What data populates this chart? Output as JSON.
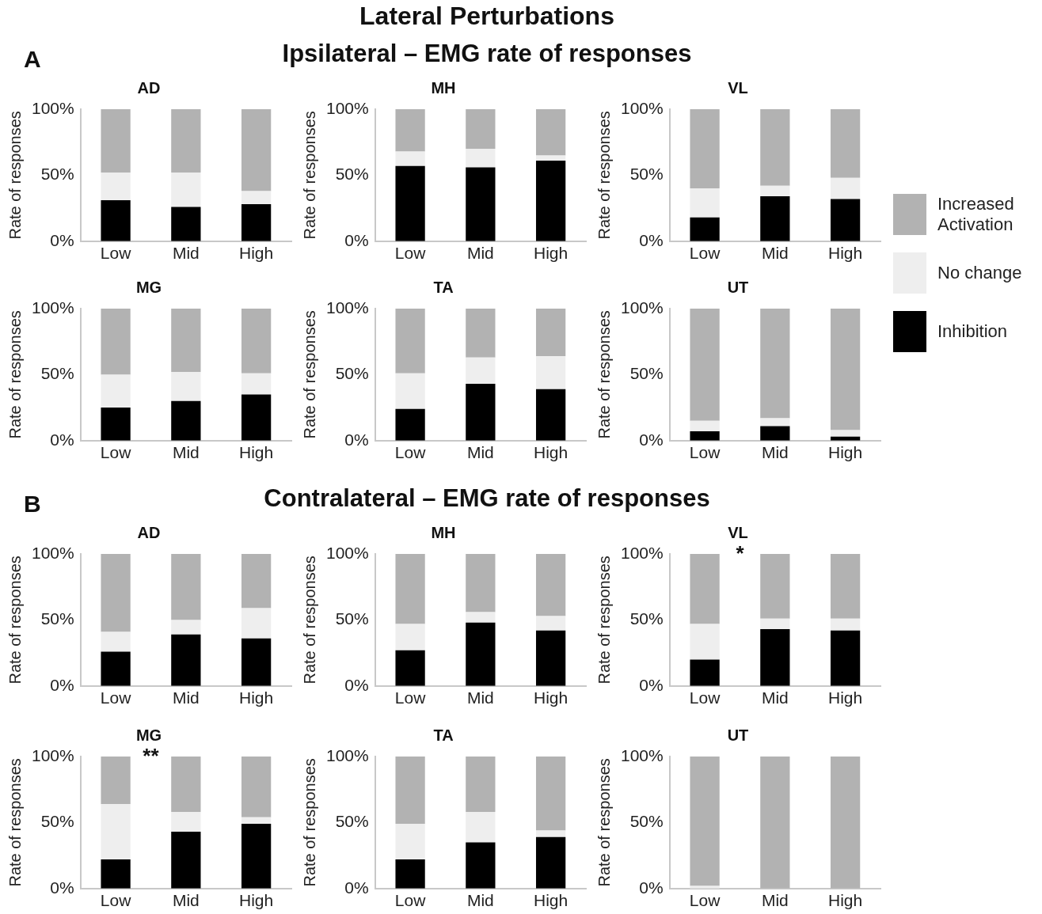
{
  "chart_data": [
    {
      "type": "bar",
      "stacked": true,
      "title": "AD",
      "ylabel": "Rate of responses",
      "categories": [
        "Low",
        "Mid",
        "High"
      ],
      "ylim": [
        0,
        100
      ],
      "yticks": [
        {
          "value": 0,
          "label": "0%"
        },
        {
          "value": 50,
          "label": "50%"
        },
        {
          "value": 100,
          "label": "100%"
        }
      ],
      "legend": "right",
      "annotations": [
        "Lateral Perturbations",
        "A",
        "Ipsilateral – EMG rate of responses"
      ],
      "series": [
        {
          "name": "Inhibition",
          "color": "#000000",
          "values": [
            31,
            26,
            28
          ]
        },
        {
          "name": "No change",
          "color": "#eeeeee",
          "values": [
            21,
            26,
            10
          ]
        },
        {
          "name": "Increased Activation",
          "color": "#b2b2b2",
          "values": [
            48,
            48,
            62
          ]
        }
      ]
    },
    {
      "type": "bar",
      "stacked": true,
      "title": "MH",
      "ylabel": "Rate of responses",
      "categories": [
        "Low",
        "Mid",
        "High"
      ],
      "ylim": [
        0,
        100
      ],
      "yticks": [
        {
          "value": 0,
          "label": "0%"
        },
        {
          "value": 50,
          "label": "50%"
        },
        {
          "value": 100,
          "label": "100%"
        }
      ],
      "series": [
        {
          "color": "#000000",
          "values": [
            57,
            56,
            61
          ]
        },
        {
          "color": "#eeeeee",
          "values": [
            11,
            14,
            4
          ]
        },
        {
          "color": "#b2b2b2",
          "values": [
            32,
            30,
            35
          ]
        }
      ]
    },
    {
      "type": "bar",
      "stacked": true,
      "title": "VL",
      "ylabel": "Rate of responses",
      "categories": [
        "Low",
        "Mid",
        "High"
      ],
      "ylim": [
        0,
        100
      ],
      "yticks": [
        {
          "value": 0,
          "label": "0%"
        },
        {
          "value": 50,
          "label": "50%"
        },
        {
          "value": 100,
          "label": "100%"
        }
      ],
      "series": [
        {
          "color": "#000000",
          "values": [
            18,
            34,
            32
          ]
        },
        {
          "color": "#eeeeee",
          "values": [
            22,
            8,
            16
          ]
        },
        {
          "color": "#b2b2b2",
          "values": [
            60,
            58,
            52
          ]
        }
      ]
    },
    {
      "type": "bar",
      "stacked": true,
      "title": "MG",
      "ylabel": "Rate of responses",
      "categories": [
        "Low",
        "Mid",
        "High"
      ],
      "ylim": [
        0,
        100
      ],
      "yticks": [
        {
          "value": 0,
          "label": "0%"
        },
        {
          "value": 50,
          "label": "50%"
        },
        {
          "value": 100,
          "label": "100%"
        }
      ],
      "series": [
        {
          "color": "#000000",
          "values": [
            25,
            30,
            35
          ]
        },
        {
          "color": "#eeeeee",
          "values": [
            25,
            22,
            16
          ]
        },
        {
          "color": "#b2b2b2",
          "values": [
            50,
            48,
            49
          ]
        }
      ]
    },
    {
      "type": "bar",
      "stacked": true,
      "title": "TA",
      "ylabel": "Rate of responses",
      "categories": [
        "Low",
        "Mid",
        "High"
      ],
      "ylim": [
        0,
        100
      ],
      "yticks": [
        {
          "value": 0,
          "label": "0%"
        },
        {
          "value": 50,
          "label": "50%"
        },
        {
          "value": 100,
          "label": "100%"
        }
      ],
      "series": [
        {
          "color": "#000000",
          "values": [
            24,
            43,
            39
          ]
        },
        {
          "color": "#eeeeee",
          "values": [
            27,
            20,
            25
          ]
        },
        {
          "color": "#b2b2b2",
          "values": [
            49,
            37,
            36
          ]
        }
      ]
    },
    {
      "type": "bar",
      "stacked": true,
      "title": "UT",
      "ylabel": "Rate of responses",
      "categories": [
        "Low",
        "Mid",
        "High"
      ],
      "ylim": [
        0,
        100
      ],
      "yticks": [
        {
          "value": 0,
          "label": "0%"
        },
        {
          "value": 50,
          "label": "50%"
        },
        {
          "value": 100,
          "label": "100%"
        }
      ],
      "series": [
        {
          "color": "#000000",
          "values": [
            7,
            11,
            3
          ]
        },
        {
          "color": "#eeeeee",
          "values": [
            8,
            6,
            5
          ]
        },
        {
          "color": "#b2b2b2",
          "values": [
            85,
            83,
            92
          ]
        }
      ]
    },
    {
      "type": "bar",
      "stacked": true,
      "title": "AD",
      "ylabel": "Rate of responses",
      "categories": [
        "Low",
        "Mid",
        "High"
      ],
      "ylim": [
        0,
        100
      ],
      "yticks": [
        {
          "value": 0,
          "label": "0%"
        },
        {
          "value": 50,
          "label": "50%"
        },
        {
          "value": 100,
          "label": "100%"
        }
      ],
      "annotations": [
        "B",
        "Contralateral – EMG rate of responses"
      ],
      "series": [
        {
          "color": "#000000",
          "values": [
            26,
            39,
            36
          ]
        },
        {
          "color": "#eeeeee",
          "values": [
            15,
            11,
            23
          ]
        },
        {
          "color": "#b2b2b2",
          "values": [
            59,
            50,
            41
          ]
        }
      ]
    },
    {
      "type": "bar",
      "stacked": true,
      "title": "MH",
      "ylabel": "Rate of responses",
      "categories": [
        "Low",
        "Mid",
        "High"
      ],
      "ylim": [
        0,
        100
      ],
      "yticks": [
        {
          "value": 0,
          "label": "0%"
        },
        {
          "value": 50,
          "label": "50%"
        },
        {
          "value": 100,
          "label": "100%"
        }
      ],
      "series": [
        {
          "color": "#000000",
          "values": [
            27,
            48,
            42
          ]
        },
        {
          "color": "#eeeeee",
          "values": [
            20,
            8,
            11
          ]
        },
        {
          "color": "#b2b2b2",
          "values": [
            53,
            44,
            47
          ]
        }
      ]
    },
    {
      "type": "bar",
      "stacked": true,
      "title": "VL",
      "ylabel": "Rate of responses",
      "categories": [
        "Low",
        "Mid",
        "High"
      ],
      "ylim": [
        0,
        100
      ],
      "yticks": [
        {
          "value": 0,
          "label": "0%"
        },
        {
          "value": 50,
          "label": "50%"
        },
        {
          "value": 100,
          "label": "100%"
        }
      ],
      "annotations": [
        {
          "text": "*",
          "x": "Mid",
          "y": 100
        }
      ],
      "series": [
        {
          "color": "#000000",
          "values": [
            20,
            43,
            42
          ]
        },
        {
          "color": "#eeeeee",
          "values": [
            27,
            8,
            9
          ]
        },
        {
          "color": "#b2b2b2",
          "values": [
            53,
            49,
            49
          ]
        }
      ]
    },
    {
      "type": "bar",
      "stacked": true,
      "title": "MG",
      "ylabel": "Rate of responses",
      "categories": [
        "Low",
        "Mid",
        "High"
      ],
      "ylim": [
        0,
        100
      ],
      "yticks": [
        {
          "value": 0,
          "label": "0%"
        },
        {
          "value": 50,
          "label": "50%"
        },
        {
          "value": 100,
          "label": "100%"
        }
      ],
      "annotations": [
        {
          "text": "**",
          "x": "Mid",
          "y": 100
        }
      ],
      "series": [
        {
          "color": "#000000",
          "values": [
            22,
            43,
            49
          ]
        },
        {
          "color": "#eeeeee",
          "values": [
            42,
            15,
            5
          ]
        },
        {
          "color": "#b2b2b2",
          "values": [
            36,
            42,
            46
          ]
        }
      ]
    },
    {
      "type": "bar",
      "stacked": true,
      "title": "TA",
      "ylabel": "Rate of responses",
      "categories": [
        "Low",
        "Mid",
        "High"
      ],
      "ylim": [
        0,
        100
      ],
      "yticks": [
        {
          "value": 0,
          "label": "0%"
        },
        {
          "value": 50,
          "label": "50%"
        },
        {
          "value": 100,
          "label": "100%"
        }
      ],
      "series": [
        {
          "color": "#000000",
          "values": [
            22,
            35,
            39
          ]
        },
        {
          "color": "#eeeeee",
          "values": [
            27,
            23,
            5
          ]
        },
        {
          "color": "#b2b2b2",
          "values": [
            51,
            42,
            56
          ]
        }
      ]
    },
    {
      "type": "bar",
      "stacked": true,
      "title": "UT",
      "ylabel": "Rate of responses",
      "categories": [
        "Low",
        "Mid",
        "High"
      ],
      "ylim": [
        0,
        100
      ],
      "yticks": [
        {
          "value": 0,
          "label": "0%"
        },
        {
          "value": 50,
          "label": "50%"
        },
        {
          "value": 100,
          "label": "100%"
        }
      ],
      "series": [
        {
          "color": "#000000",
          "values": [
            0,
            0,
            0
          ]
        },
        {
          "color": "#eeeeee",
          "values": [
            2,
            0,
            0
          ]
        },
        {
          "color": "#b2b2b2",
          "values": [
            98,
            100,
            100
          ]
        }
      ]
    }
  ]
}
